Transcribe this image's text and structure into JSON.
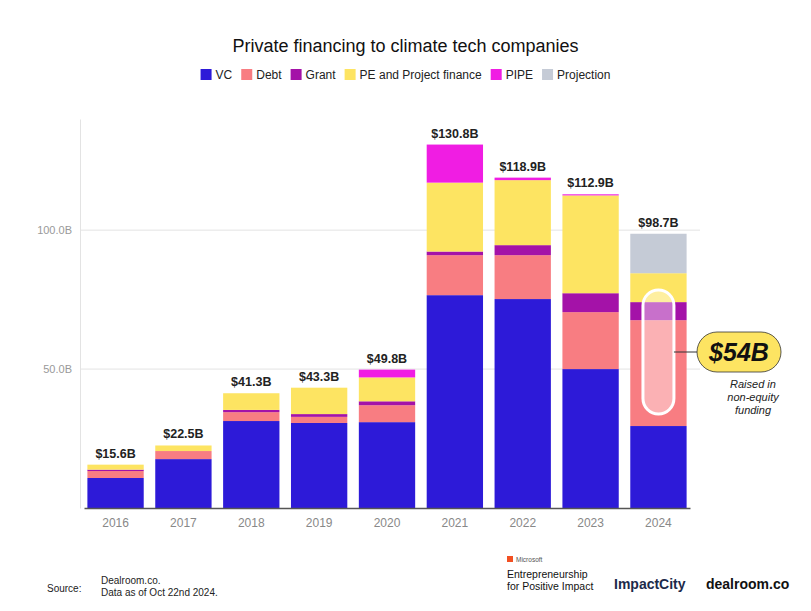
{
  "chart_data": {
    "type": "bar",
    "title": "Private financing to climate tech companies",
    "stacked": true,
    "grid": true,
    "legend": "top",
    "categories": [
      "2016",
      "2017",
      "2018",
      "2019",
      "2020",
      "2021",
      "2022",
      "2023",
      "2024"
    ],
    "series": [
      {
        "name": "VC",
        "color": "#2d1ad8",
        "values": [
          10.8,
          17.6,
          31.3,
          30.6,
          30.9,
          76.6,
          75.2,
          50.0,
          29.5
        ]
      },
      {
        "name": "Debt",
        "color": "#f87d82",
        "values": [
          2.5,
          2.9,
          3.2,
          2.2,
          6.1,
          14.4,
          15.8,
          20.5,
          38.1
        ]
      },
      {
        "name": "Grant",
        "color": "#a412a8",
        "values": [
          0.5,
          0,
          0.8,
          1.0,
          1.4,
          1.3,
          3.6,
          6.8,
          6.5
        ]
      },
      {
        "name": "PE and Project finance",
        "color": "#fde462",
        "values": [
          1.8,
          2.0,
          6.0,
          9.5,
          8.6,
          24.8,
          23.4,
          35.2,
          10.4
        ]
      },
      {
        "name": "PIPE",
        "color": "#f01de3",
        "values": [
          0,
          0,
          0,
          0,
          2.8,
          13.7,
          0.9,
          0.4,
          0
        ]
      },
      {
        "name": "Projection",
        "color": "#c5cbd6",
        "values": [
          null,
          null,
          null,
          null,
          null,
          null,
          null,
          null,
          14.2
        ]
      }
    ],
    "totals": {
      "values": [
        15.6,
        22.5,
        41.3,
        43.3,
        49.8,
        130.8,
        118.9,
        112.9,
        98.7
      ],
      "value_labels": [
        "$15.6B",
        "$22.5B",
        "$41.3B",
        "$43.3B",
        "$49.8B",
        "$130.8B",
        "$118.9B",
        "$112.9B",
        "$98.7B"
      ]
    },
    "ylim": [
      0,
      140
    ],
    "yticks": [
      {
        "value": 50,
        "label": "50.0B"
      },
      {
        "value": 100,
        "label": "100.0B"
      }
    ],
    "annotation": {
      "label": "$54B",
      "value": 54,
      "text": [
        "Raised in",
        "non-equity",
        "funding"
      ]
    },
    "footer": {
      "source_label": "Source:",
      "source": [
        "Dealroom.co.",
        "Data as of Oct 22nd 2024."
      ],
      "logos": {
        "microsoft": "Microsoft",
        "program": [
          "Entrepreneurship",
          "for Positive Impact"
        ],
        "impactcity": "ImpactCity",
        "dealroom": "dealroom.co"
      }
    }
  }
}
